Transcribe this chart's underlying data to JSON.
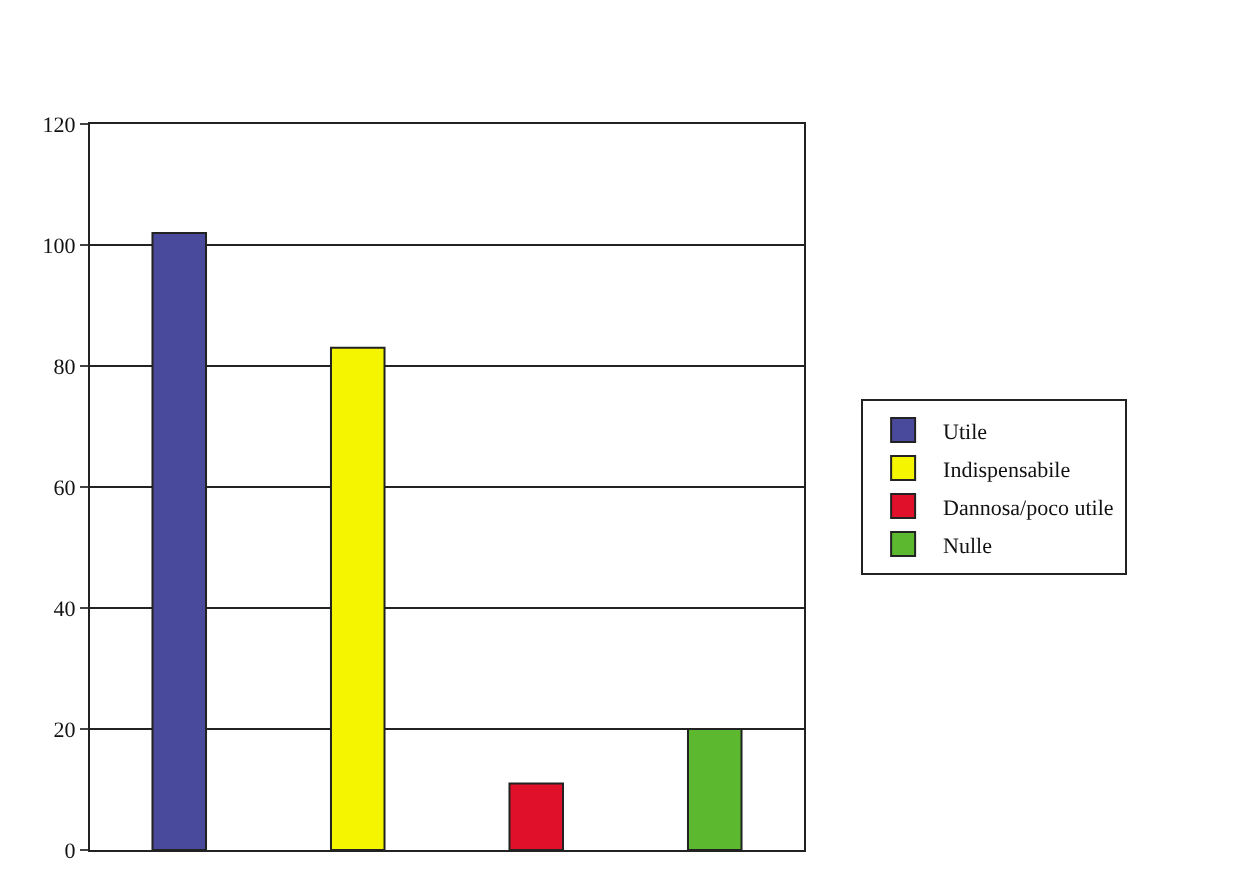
{
  "chart_data": {
    "type": "bar",
    "categories": [
      null,
      null,
      null,
      null
    ],
    "series": [
      {
        "name": "Utile",
        "color": "#4a4a9c",
        "values": [
          102,
          null,
          null,
          null
        ]
      },
      {
        "name": "Indispensabile",
        "color": "#f5f500",
        "values": [
          null,
          83,
          null,
          null
        ]
      },
      {
        "name": "Dannosa/poco utile",
        "color": "#e0102a",
        "values": [
          null,
          null,
          11,
          null
        ]
      },
      {
        "name": "Nulle",
        "color": "#5cb82e",
        "values": [
          null,
          null,
          null,
          20
        ]
      }
    ],
    "ylim": [
      0,
      120
    ],
    "yticks": [
      0,
      20,
      40,
      60,
      80,
      100,
      120
    ],
    "grid": "y",
    "legend": "right"
  }
}
